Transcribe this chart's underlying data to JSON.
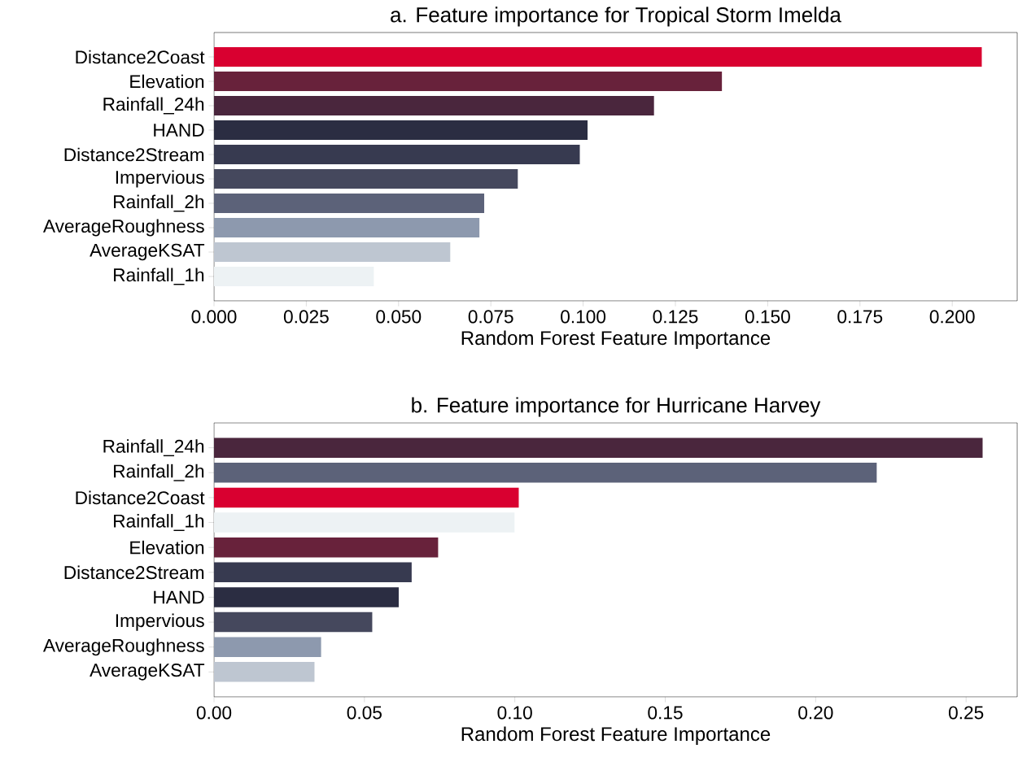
{
  "chart_data": [
    {
      "type": "bar",
      "orientation": "horizontal",
      "title": "a. Feature importance for Tropical Storm Imelda",
      "xlabel": "Random Forest Feature Importance",
      "categories": [
        "Distance2Coast",
        "Elevation",
        "Rainfall_24h",
        "HAND",
        "Distance2Stream",
        "Impervious",
        "Rainfall_2h",
        "AverageRoughness",
        "AverageKSAT",
        "Rainfall_1h"
      ],
      "values": [
        0.208,
        0.1376,
        0.1192,
        0.1012,
        0.0991,
        0.0823,
        0.0732,
        0.0719,
        0.064,
        0.0433
      ],
      "colors": [
        "#d90030",
        "#68223b",
        "#4a263d",
        "#2b2d42",
        "#373a50",
        "#45485d",
        "#5c6279",
        "#8d99ae",
        "#bec6d1",
        "#edf2f4"
      ],
      "xlim": [
        0,
        0.2176
      ],
      "xticks": [
        {
          "value": 0,
          "label": "0.000"
        },
        {
          "value": 0.025,
          "label": "0.025"
        },
        {
          "value": 0.05,
          "label": "0.050"
        },
        {
          "value": 0.075,
          "label": "0.075"
        },
        {
          "value": 0.1,
          "label": "0.100"
        },
        {
          "value": 0.125,
          "label": "0.125"
        },
        {
          "value": 0.15,
          "label": "0.150"
        },
        {
          "value": 0.175,
          "label": "0.175"
        },
        {
          "value": 0.2,
          "label": "0.200"
        }
      ]
    },
    {
      "type": "bar",
      "orientation": "horizontal",
      "title": "b. Feature importance for Hurricane Harvey",
      "xlabel": "Random Forest Feature Importance",
      "categories": [
        "Rainfall_24h",
        "Rainfall_2h",
        "Distance2Coast",
        "Rainfall_1h",
        "Elevation",
        "Distance2Stream",
        "HAND",
        "Impervious",
        "AverageRoughness",
        "AverageKSAT"
      ],
      "values": [
        0.2555,
        0.2203,
        0.1013,
        0.0999,
        0.0745,
        0.0657,
        0.0614,
        0.0526,
        0.0356,
        0.0334
      ],
      "colors": [
        "#4a263d",
        "#5c6279",
        "#d90030",
        "#edf2f4",
        "#68223b",
        "#373a50",
        "#2b2d42",
        "#45485d",
        "#8d99ae",
        "#bec6d1"
      ],
      "xlim": [
        0,
        0.267
      ],
      "xticks": [
        {
          "value": 0,
          "label": "0.00"
        },
        {
          "value": 0.05,
          "label": "0.05"
        },
        {
          "value": 0.1,
          "label": "0.10"
        },
        {
          "value": 0.15,
          "label": "0.15"
        },
        {
          "value": 0.2,
          "label": "0.20"
        },
        {
          "value": 0.25,
          "label": "0.25"
        }
      ]
    }
  ]
}
